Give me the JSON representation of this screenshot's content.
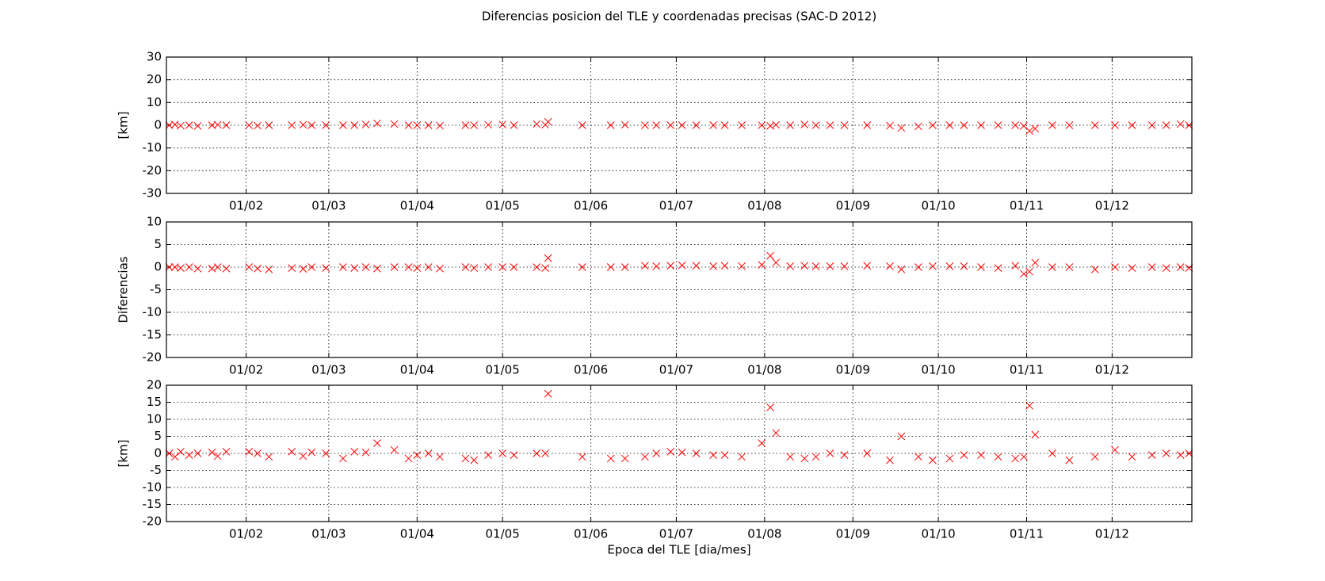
{
  "chart_data": [
    {
      "type": "scatter",
      "title": "Diferencias posicion del TLE y coordenadas precisas (SAC-D 2012)",
      "ylabel": "[km]",
      "marker": "x",
      "color": "#ff0000",
      "grid": true,
      "xlim": [
        4,
        364
      ],
      "ylim": [
        -30,
        30
      ],
      "yticks": [
        -30,
        -20,
        -10,
        0,
        10,
        20,
        30
      ],
      "xticks": [
        {
          "value": 32,
          "label": "01/02"
        },
        {
          "value": 61,
          "label": "01/03"
        },
        {
          "value": 92,
          "label": "01/04"
        },
        {
          "value": 122,
          "label": "01/05"
        },
        {
          "value": 153,
          "label": "01/06"
        },
        {
          "value": 183,
          "label": "01/07"
        },
        {
          "value": 214,
          "label": "01/08"
        },
        {
          "value": 245,
          "label": "01/09"
        },
        {
          "value": 275,
          "label": "01/10"
        },
        {
          "value": 306,
          "label": "01/11"
        },
        {
          "value": 336,
          "label": "01/12"
        }
      ],
      "x": [
        5,
        7,
        9,
        12,
        15,
        20,
        22,
        25,
        33,
        36,
        40,
        48,
        52,
        55,
        60,
        66,
        70,
        74,
        78,
        84,
        89,
        92,
        96,
        100,
        109,
        112,
        117,
        122,
        126,
        134,
        137,
        138,
        150,
        160,
        165,
        172,
        176,
        181,
        185,
        190,
        196,
        200,
        206,
        213,
        216,
        218,
        223,
        228,
        232,
        237,
        242,
        250,
        258,
        262,
        268,
        273,
        279,
        284,
        290,
        296,
        302,
        305,
        307,
        309,
        315,
        321,
        330,
        337,
        343,
        350,
        355,
        360,
        363
      ],
      "values": [
        0,
        0.3,
        -0.2,
        0,
        -0.3,
        0,
        0.2,
        0,
        0,
        -0.2,
        0,
        0,
        0.2,
        0,
        0,
        0,
        0,
        0.3,
        0.8,
        0.5,
        0,
        0,
        0,
        -0.2,
        0,
        0,
        0.2,
        0.3,
        0,
        0.5,
        0.2,
        1.5,
        0,
        0,
        0.2,
        0,
        0,
        0,
        0,
        0,
        0,
        0,
        0,
        0,
        -0.3,
        0.2,
        0,
        0.3,
        0,
        0,
        0,
        0,
        -0.2,
        -1.2,
        -0.5,
        0,
        0,
        0,
        0,
        0,
        0,
        -0.3,
        -2.5,
        -1.5,
        0,
        0,
        0,
        0,
        0,
        0,
        0,
        0.5,
        0
      ]
    },
    {
      "type": "scatter",
      "ylabel": "Diferencias",
      "marker": "x",
      "color": "#ff0000",
      "grid": true,
      "xlim": [
        4,
        364
      ],
      "ylim": [
        -20,
        10
      ],
      "yticks": [
        -20,
        -15,
        -10,
        -5,
        0,
        5,
        10
      ],
      "xticks": [
        {
          "value": 32,
          "label": "01/02"
        },
        {
          "value": 61,
          "label": "01/03"
        },
        {
          "value": 92,
          "label": "01/04"
        },
        {
          "value": 122,
          "label": "01/05"
        },
        {
          "value": 153,
          "label": "01/06"
        },
        {
          "value": 183,
          "label": "01/07"
        },
        {
          "value": 214,
          "label": "01/08"
        },
        {
          "value": 245,
          "label": "01/09"
        },
        {
          "value": 275,
          "label": "01/10"
        },
        {
          "value": 306,
          "label": "01/11"
        },
        {
          "value": 336,
          "label": "01/12"
        }
      ],
      "x": [
        5,
        7,
        9,
        12,
        15,
        20,
        22,
        25,
        33,
        36,
        40,
        48,
        52,
        55,
        60,
        66,
        70,
        74,
        78,
        84,
        89,
        92,
        96,
        100,
        109,
        112,
        117,
        122,
        126,
        134,
        137,
        138,
        150,
        160,
        165,
        172,
        176,
        181,
        185,
        190,
        196,
        200,
        206,
        213,
        216,
        218,
        223,
        228,
        232,
        237,
        242,
        250,
        258,
        262,
        268,
        273,
        279,
        284,
        290,
        296,
        302,
        305,
        307,
        309,
        315,
        321,
        330,
        337,
        343,
        350,
        355,
        360,
        363
      ],
      "values": [
        0,
        0,
        -0.2,
        0,
        -0.3,
        -0.3,
        0,
        -0.3,
        0,
        -0.3,
        -0.5,
        -0.2,
        -0.4,
        0,
        -0.2,
        0,
        -0.2,
        0,
        -0.3,
        0,
        0,
        -0.2,
        0,
        -0.3,
        0,
        -0.2,
        0,
        0,
        0,
        0,
        -0.2,
        2,
        0,
        0,
        0,
        0.3,
        0.2,
        0.3,
        0.4,
        0.3,
        0.2,
        0.3,
        0.2,
        0.5,
        2.5,
        1,
        0.2,
        0.3,
        0.2,
        0.2,
        0.2,
        0.3,
        0.2,
        -0.5,
        0,
        0.2,
        0.2,
        0.2,
        0,
        -0.2,
        0.3,
        -1.5,
        -1,
        1,
        0,
        0,
        -0.5,
        0,
        -0.2,
        0,
        -0.2,
        0,
        -0.2
      ]
    },
    {
      "type": "scatter",
      "ylabel": "[km]",
      "xlabel": "Epoca del TLE [dia/mes]",
      "marker": "x",
      "color": "#ff0000",
      "grid": true,
      "xlim": [
        4,
        364
      ],
      "ylim": [
        -20,
        20
      ],
      "yticks": [
        -20,
        -15,
        -10,
        -5,
        0,
        5,
        10,
        15,
        20
      ],
      "xticks": [
        {
          "value": 32,
          "label": "01/02"
        },
        {
          "value": 61,
          "label": "01/03"
        },
        {
          "value": 92,
          "label": "01/04"
        },
        {
          "value": 122,
          "label": "01/05"
        },
        {
          "value": 153,
          "label": "01/06"
        },
        {
          "value": 183,
          "label": "01/07"
        },
        {
          "value": 214,
          "label": "01/08"
        },
        {
          "value": 245,
          "label": "01/09"
        },
        {
          "value": 275,
          "label": "01/10"
        },
        {
          "value": 306,
          "label": "01/11"
        },
        {
          "value": 336,
          "label": "01/12"
        }
      ],
      "x": [
        5,
        7,
        9,
        12,
        15,
        20,
        22,
        25,
        33,
        36,
        40,
        48,
        52,
        55,
        60,
        66,
        70,
        74,
        78,
        84,
        89,
        92,
        96,
        100,
        109,
        112,
        117,
        122,
        126,
        134,
        137,
        138,
        150,
        160,
        165,
        172,
        176,
        181,
        185,
        190,
        196,
        200,
        206,
        213,
        216,
        218,
        223,
        228,
        232,
        237,
        242,
        250,
        258,
        262,
        268,
        273,
        279,
        284,
        290,
        296,
        302,
        305,
        307,
        309,
        315,
        321,
        330,
        337,
        343,
        350,
        355,
        360,
        363
      ],
      "values": [
        0,
        -1,
        0.5,
        -0.5,
        0,
        0.3,
        -0.8,
        0.5,
        0.5,
        0,
        -1,
        0.5,
        -0.8,
        0.3,
        0,
        -1.5,
        0.5,
        0.3,
        3,
        1,
        -1.5,
        -0.5,
        0,
        -1,
        -1.5,
        -2,
        -0.5,
        0,
        -0.5,
        0,
        0,
        17.5,
        -1,
        -1.5,
        -1.5,
        -1,
        0,
        0.5,
        0.3,
        0,
        -0.5,
        -0.5,
        -1,
        3,
        13.5,
        6,
        -1,
        -1.5,
        -1,
        0,
        -0.5,
        0,
        -2,
        5,
        -1,
        -2,
        -1.5,
        -0.5,
        -0.5,
        -1,
        -1.5,
        -1,
        14,
        5.5,
        0,
        -2,
        -1,
        1,
        -1,
        -0.5,
        0,
        -0.5,
        0
      ]
    }
  ]
}
